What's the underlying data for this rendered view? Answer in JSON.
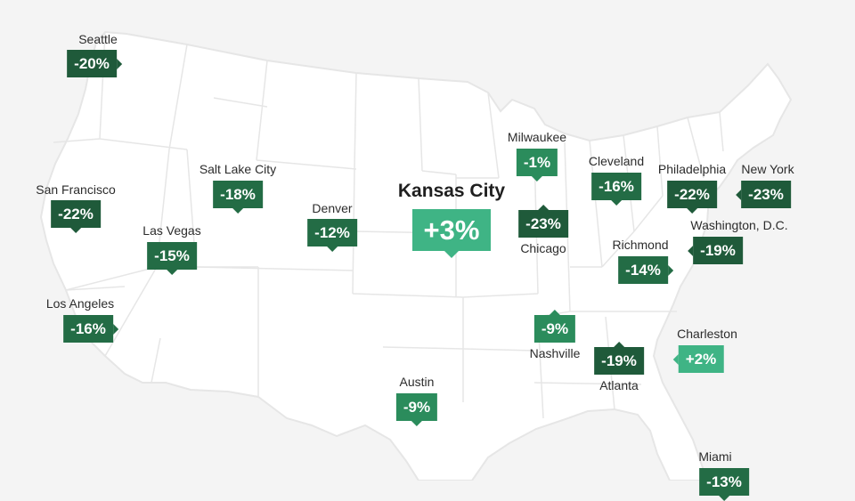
{
  "colors": {
    "background": "#f4f4f4",
    "land": "#ffffff",
    "borders": "#e6e6e6",
    "gain": "#3fb485",
    "loss_dark": "#1f5a3a",
    "loss_mid": "#236c45",
    "loss_light": "#2b8c5c"
  },
  "map": {
    "type": "choropleth-style callout map",
    "region": "United States",
    "metric": "percent change by city"
  },
  "cities": [
    {
      "name": "Seattle",
      "value": "-20%",
      "tone": "loss_dark",
      "pointer": "right"
    },
    {
      "name": "San Francisco",
      "value": "-22%",
      "tone": "loss_dark",
      "pointer": "bottom"
    },
    {
      "name": "Los Angeles",
      "value": "-16%",
      "tone": "loss_mid",
      "pointer": "right"
    },
    {
      "name": "Las Vegas",
      "value": "-15%",
      "tone": "loss_mid",
      "pointer": "bottom"
    },
    {
      "name": "Salt Lake City",
      "value": "-18%",
      "tone": "loss_mid",
      "pointer": "bottom"
    },
    {
      "name": "Denver",
      "value": "-12%",
      "tone": "loss_mid",
      "pointer": "bottom"
    },
    {
      "name": "Kansas City",
      "value": "+3%",
      "tone": "gain",
      "pointer": "bottom",
      "featured": true
    },
    {
      "name": "Austin",
      "value": "-9%",
      "tone": "loss_light",
      "pointer": "bottom"
    },
    {
      "name": "Milwaukee",
      "value": "-1%",
      "tone": "loss_light",
      "pointer": "bottom"
    },
    {
      "name": "Chicago",
      "value": "-23%",
      "tone": "loss_dark",
      "pointer": "top"
    },
    {
      "name": "Nashville",
      "value": "-9%",
      "tone": "loss_light",
      "pointer": "top"
    },
    {
      "name": "Atlanta",
      "value": "-19%",
      "tone": "loss_dark",
      "pointer": "top"
    },
    {
      "name": "Cleveland",
      "value": "-16%",
      "tone": "loss_mid",
      "pointer": "bottom"
    },
    {
      "name": "Richmond",
      "value": "-14%",
      "tone": "loss_mid",
      "pointer": "right"
    },
    {
      "name": "Philadelphia",
      "value": "-22%",
      "tone": "loss_dark",
      "pointer": "bottom"
    },
    {
      "name": "New York",
      "value": "-23%",
      "tone": "loss_dark",
      "pointer": "left"
    },
    {
      "name": "Washington, D.C.",
      "value": "-19%",
      "tone": "loss_dark",
      "pointer": "left"
    },
    {
      "name": "Charleston",
      "value": "+2%",
      "tone": "gain",
      "pointer": "left"
    },
    {
      "name": "Miami",
      "value": "-13%",
      "tone": "loss_mid",
      "pointer": "bottom"
    }
  ]
}
